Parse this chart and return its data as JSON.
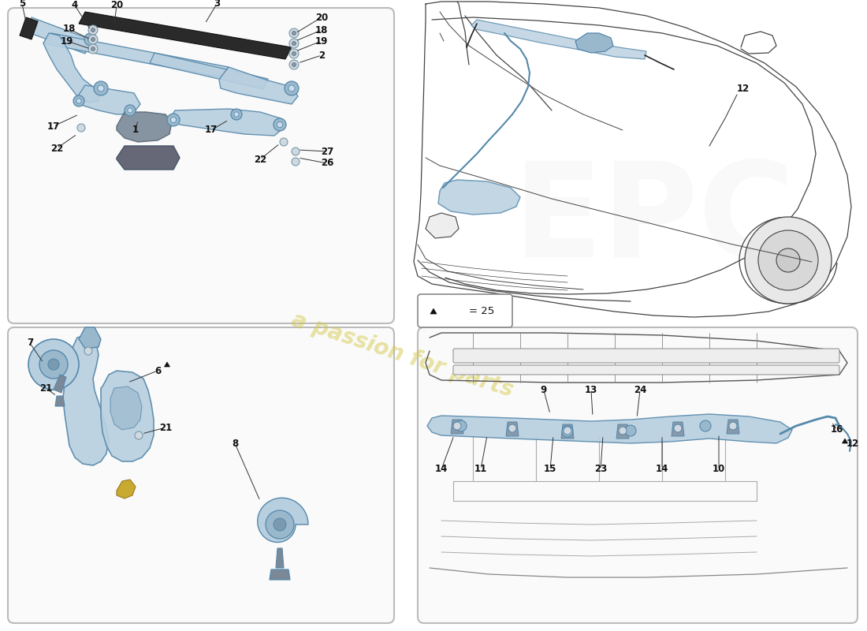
{
  "bg_color": "#ffffff",
  "panel_fill": "#f8f8f8",
  "panel_edge": "#bbbbbb",
  "part_fill": "#b8cfe0",
  "part_fill2": "#9ab8cc",
  "part_edge": "#5588aa",
  "dark_part": "#556677",
  "car_line": "#444444",
  "label_color": "#111111",
  "line_color": "#555555",
  "watermark_text": "a passion for parts",
  "watermark_color": "#d4c84a",
  "lw_part": 1.0,
  "lw_car": 0.9,
  "lw_label": 0.7,
  "label_fs": 8.5
}
